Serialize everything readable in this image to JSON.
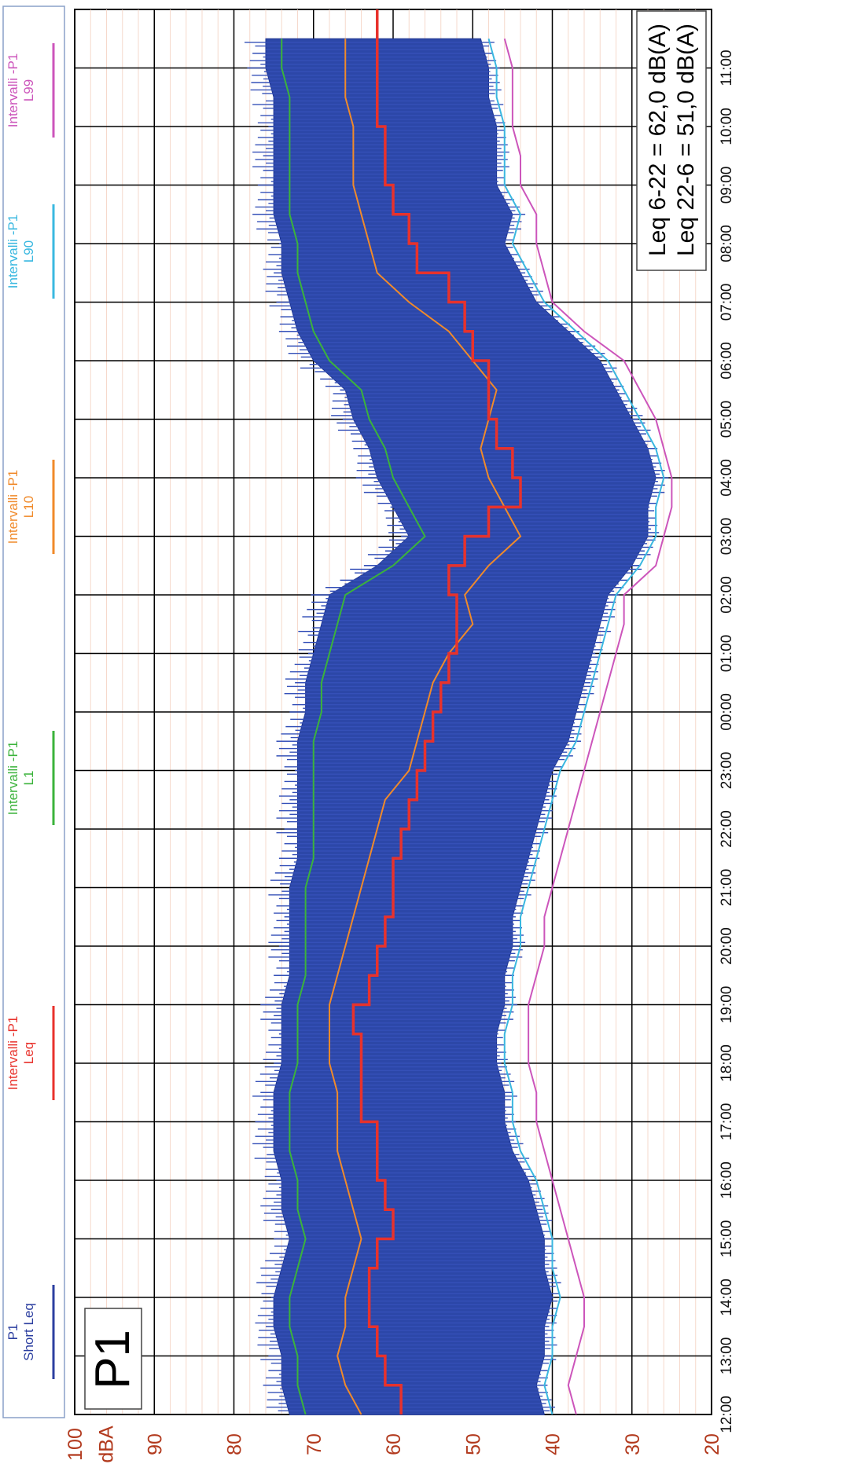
{
  "chart_data": {
    "type": "line",
    "title": "P1",
    "ylabel": "dBA",
    "ylim": [
      20,
      100
    ],
    "y_ticks": [
      "20",
      "30",
      "40",
      "50",
      "60",
      "70",
      "80",
      "90",
      "100"
    ],
    "x_ticks": [
      "12:00",
      "13:00",
      "14:00",
      "15:00",
      "16:00",
      "17:00",
      "18:00",
      "19:00",
      "20:00",
      "21:00",
      "22:00",
      "23:00",
      "00:00",
      "01:00",
      "02:00",
      "03:00",
      "04:00",
      "05:00",
      "06:00",
      "07:00",
      "08:00",
      "09:00",
      "10:00",
      "11:00"
    ],
    "grid": true,
    "legend_position": "top",
    "annotation_lines": [
      "Leq 6-22 = 62,0 dB(A)",
      "Leq 22-6 = 51,0 dB(A)"
    ],
    "legend": [
      {
        "line1": "P1",
        "line2": "Short Leq",
        "color": "#2c3fa0"
      },
      {
        "line1": "Intervalli -P1",
        "line2": "Leq",
        "color": "#e8322c"
      },
      {
        "line1": "Intervalli -P1",
        "line2": "L1",
        "color": "#3bb33b"
      },
      {
        "line1": "Intervalli -P1",
        "line2": "L10",
        "color": "#f08a2a"
      },
      {
        "line1": "Intervalli -P1",
        "line2": "L90",
        "color": "#3ab8e0"
      },
      {
        "line1": "Intervalli -P1",
        "line2": "L99",
        "color": "#cc55bb"
      }
    ],
    "x_hours": [
      0,
      0.5,
      1,
      1.5,
      2,
      2.5,
      3,
      3.5,
      4,
      4.5,
      5,
      5.5,
      6,
      6.5,
      7,
      7.5,
      8,
      8.5,
      9,
      9.5,
      10,
      10.5,
      11,
      11.5,
      12,
      12.5,
      13,
      13.5,
      14,
      14.5,
      15,
      15.5,
      16,
      16.5,
      17,
      17.5,
      18,
      18.5,
      19,
      19.5,
      20,
      20.5,
      21,
      21.5,
      22,
      22.5,
      23,
      23.5
    ],
    "series": [
      {
        "name": "Leq",
        "color": "#e8322c",
        "values": [
          59,
          61,
          62,
          63,
          63,
          62,
          60,
          61,
          62,
          62,
          64,
          64,
          64,
          65,
          63,
          62,
          61,
          60,
          60,
          59,
          58,
          57,
          56,
          55,
          54,
          53,
          52,
          52,
          53,
          51,
          48,
          44,
          45,
          47,
          48,
          48,
          50,
          51,
          53,
          57,
          58,
          60,
          61,
          61,
          62,
          62,
          62,
          62
        ]
      },
      {
        "name": "L1",
        "color": "#3bb33b",
        "values": [
          71,
          72,
          72,
          73,
          73,
          72,
          71,
          72,
          72,
          73,
          73,
          73,
          72,
          72,
          72,
          71,
          71,
          71,
          71,
          70,
          70,
          70,
          70,
          70,
          69,
          69,
          68,
          67,
          66,
          60,
          56,
          58,
          60,
          61,
          63,
          64,
          68,
          70,
          71,
          72,
          72,
          73,
          73,
          73,
          73,
          73,
          74,
          74
        ]
      },
      {
        "name": "L10",
        "color": "#f08a2a",
        "values": [
          64,
          66,
          67,
          66,
          66,
          65,
          64,
          65,
          66,
          67,
          67,
          67,
          68,
          68,
          68,
          67,
          66,
          65,
          64,
          63,
          62,
          61,
          58,
          57,
          56,
          55,
          53,
          50,
          51,
          48,
          44,
          46,
          48,
          49,
          48,
          47,
          50,
          53,
          58,
          62,
          63,
          64,
          65,
          65,
          65,
          66,
          66,
          66
        ]
      },
      {
        "name": "L90",
        "color": "#3ab8e0",
        "values": [
          40,
          41,
          40,
          40,
          39,
          40,
          40,
          41,
          42,
          44,
          45,
          45,
          46,
          46,
          45,
          45,
          44,
          44,
          43,
          42,
          41,
          40,
          39,
          37,
          36,
          35,
          34,
          33,
          32,
          29,
          27,
          27,
          26,
          27,
          29,
          31,
          33,
          37,
          41,
          43,
          45,
          44,
          46,
          46,
          46,
          47,
          47,
          48
        ]
      },
      {
        "name": "L99",
        "color": "#cc55bb",
        "values": [
          37,
          38,
          37,
          36,
          36,
          37,
          38,
          39,
          40,
          41,
          42,
          42,
          43,
          43,
          43,
          42,
          41,
          41,
          40,
          39,
          38,
          37,
          36,
          35,
          34,
          33,
          32,
          31,
          31,
          27,
          26,
          25,
          25,
          26,
          27,
          29,
          31,
          36,
          40,
          41,
          42,
          42,
          44,
          44,
          45,
          45,
          45,
          46
        ]
      },
      {
        "name": "Short Leq band upper",
        "color": "#2c3fa0",
        "values": [
          73,
          74,
          74,
          75,
          75,
          74,
          73,
          74,
          74,
          75,
          75,
          75,
          74,
          74,
          74,
          73,
          73,
          73,
          73,
          72,
          72,
          72,
          72,
          72,
          71,
          71,
          70,
          69,
          68,
          62,
          58,
          60,
          62,
          63,
          65,
          66,
          70,
          72,
          73,
          74,
          74,
          75,
          75,
          75,
          75,
          75,
          76,
          76
        ]
      },
      {
        "name": "Short Leq band lower",
        "color": "#2c3fa0",
        "values": [
          41,
          42,
          41,
          41,
          40,
          41,
          41,
          42,
          43,
          45,
          46,
          46,
          47,
          47,
          46,
          46,
          45,
          45,
          44,
          43,
          42,
          41,
          40,
          38,
          37,
          36,
          35,
          34,
          33,
          30,
          28,
          28,
          27,
          28,
          30,
          32,
          34,
          38,
          42,
          44,
          46,
          45,
          47,
          47,
          47,
          48,
          48,
          49
        ]
      }
    ]
  }
}
